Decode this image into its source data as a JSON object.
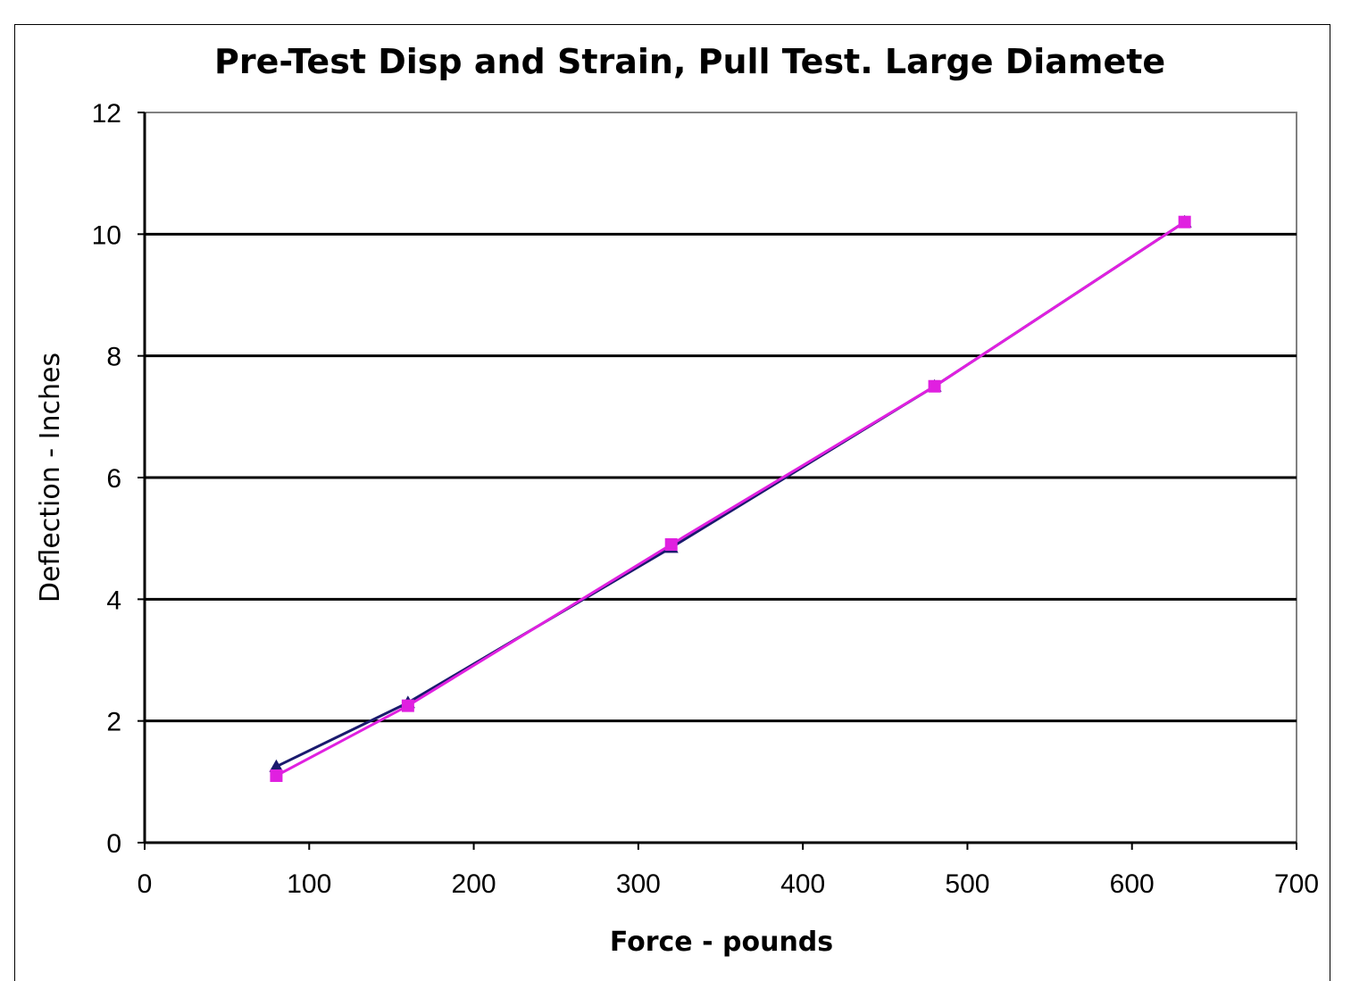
{
  "chart_data": {
    "type": "line",
    "title": "Pre-Test Disp and Strain, Pull Test. Large Diamete",
    "xlabel": "Force - pounds",
    "ylabel": "Deflection - Inches",
    "xlim": [
      0,
      700
    ],
    "ylim": [
      0,
      12
    ],
    "x_ticks": [
      "0",
      "100",
      "200",
      "300",
      "400",
      "500",
      "600",
      "700"
    ],
    "y_ticks": [
      "0",
      "2",
      "4",
      "6",
      "8",
      "10",
      "12"
    ],
    "grid": "horizontal",
    "legend": "none",
    "series": [
      {
        "color": "#1a1a6e",
        "marker": "triangle",
        "points": [
          [
            80,
            1.25
          ],
          [
            160,
            2.3
          ],
          [
            320,
            4.85
          ],
          [
            480,
            7.5
          ],
          [
            632,
            10.2
          ]
        ]
      },
      {
        "color": "#e020e0",
        "marker": "square",
        "points": [
          [
            80,
            1.1
          ],
          [
            160,
            2.25
          ],
          [
            320,
            4.9
          ],
          [
            480,
            7.5
          ],
          [
            632,
            10.2
          ]
        ]
      }
    ]
  }
}
